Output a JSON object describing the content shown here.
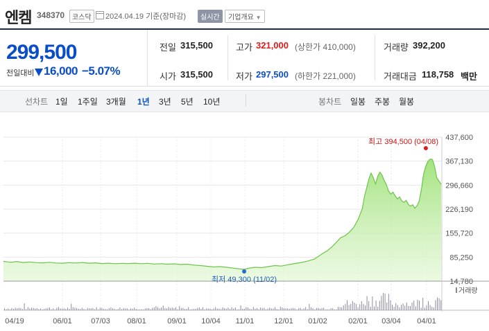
{
  "header": {
    "name": "엔켐",
    "code": "348370",
    "market": "코스닥",
    "date": "2024.04.19",
    "basis": "기준(장마감)",
    "realtime": "실시간",
    "company_info": "기업개요"
  },
  "price": {
    "current": "299,500",
    "change_label": "전일대비",
    "change": "16,000",
    "change_pct": "−5.07%"
  },
  "stats": {
    "prev_label": "전일",
    "prev": "315,500",
    "high_label": "고가",
    "high": "321,000",
    "upper_limit": "(상한가 410,000)",
    "volume_label": "거래량",
    "volume": "392,200",
    "open_label": "시가",
    "open": "315,500",
    "low_label": "저가",
    "low": "297,500",
    "lower_limit": "(하한가 221,000)",
    "amount_label": "거래대금",
    "amount": "118,758",
    "amount_unit": "백만"
  },
  "tabs": {
    "line_label": "선차트",
    "periods": [
      "1일",
      "1주일",
      "3개월",
      "1년",
      "3년",
      "5년",
      "10년"
    ],
    "active_period": "1년",
    "candle_label": "봉차트",
    "candles": [
      "일봉",
      "주봉",
      "월봉"
    ]
  },
  "chart_data": {
    "type": "area",
    "y_ticks": [
      "437,600",
      "367,130",
      "296,660",
      "226,190",
      "155,720",
      "85,250",
      "14,780"
    ],
    "ylim": [
      14780,
      437600
    ],
    "x_ticks": [
      "04/19",
      "06/01",
      "07/03",
      "08/01",
      "09/01",
      "10/04",
      "11/01",
      "12/01",
      "01/02",
      "02/01",
      "03/04",
      "04/01"
    ],
    "max_annotation": "최고 394,500 (04/08)",
    "min_annotation": "최저 49,300 (11/02)",
    "volume_label": "거래량",
    "prices": [
      [
        0,
        73000
      ],
      [
        0.01,
        71000
      ],
      [
        0.02,
        70500
      ],
      [
        0.03,
        72500
      ],
      [
        0.045,
        69500
      ],
      [
        0.06,
        71000
      ],
      [
        0.075,
        69000
      ],
      [
        0.09,
        68500
      ],
      [
        0.105,
        70000
      ],
      [
        0.12,
        68000
      ],
      [
        0.135,
        67500
      ],
      [
        0.15,
        69000
      ],
      [
        0.165,
        68000
      ],
      [
        0.18,
        69500
      ],
      [
        0.195,
        67500
      ],
      [
        0.21,
        68500
      ],
      [
        0.225,
        66500
      ],
      [
        0.24,
        67500
      ],
      [
        0.255,
        66000
      ],
      [
        0.27,
        67000
      ],
      [
        0.285,
        66500
      ],
      [
        0.3,
        67500
      ],
      [
        0.315,
        66000
      ],
      [
        0.33,
        67000
      ],
      [
        0.345,
        65000
      ],
      [
        0.36,
        66000
      ],
      [
        0.375,
        64500
      ],
      [
        0.39,
        65500
      ],
      [
        0.405,
        63500
      ],
      [
        0.42,
        64500
      ],
      [
        0.435,
        62000
      ],
      [
        0.45,
        60500
      ],
      [
        0.465,
        58500
      ],
      [
        0.48,
        56500
      ],
      [
        0.495,
        57500
      ],
      [
        0.51,
        55500
      ],
      [
        0.525,
        53000
      ],
      [
        0.54,
        50500
      ],
      [
        0.55,
        49300
      ],
      [
        0.56,
        52500
      ],
      [
        0.575,
        55500
      ],
      [
        0.59,
        54500
      ],
      [
        0.605,
        57500
      ],
      [
        0.62,
        60500
      ],
      [
        0.635,
        59000
      ],
      [
        0.65,
        63000
      ],
      [
        0.665,
        66500
      ],
      [
        0.68,
        69500
      ],
      [
        0.695,
        73500
      ],
      [
        0.71,
        79500
      ],
      [
        0.72,
        88000
      ],
      [
        0.73,
        96500
      ],
      [
        0.74,
        104000
      ],
      [
        0.75,
        115000
      ],
      [
        0.76,
        128000
      ],
      [
        0.77,
        142000
      ],
      [
        0.78,
        148000
      ],
      [
        0.79,
        158000
      ],
      [
        0.8,
        172000
      ],
      [
        0.81,
        195000
      ],
      [
        0.82,
        228000
      ],
      [
        0.825,
        265000
      ],
      [
        0.83,
        289000
      ],
      [
        0.835,
        315000
      ],
      [
        0.84,
        332000
      ],
      [
        0.845,
        318000
      ],
      [
        0.85,
        300000
      ],
      [
        0.855,
        322000
      ],
      [
        0.86,
        335000
      ],
      [
        0.865,
        326000
      ],
      [
        0.87,
        310000
      ],
      [
        0.875,
        298000
      ],
      [
        0.88,
        279000
      ],
      [
        0.885,
        270000
      ],
      [
        0.89,
        276000
      ],
      [
        0.895,
        265000
      ],
      [
        0.9,
        256000
      ],
      [
        0.905,
        262000
      ],
      [
        0.91,
        250000
      ],
      [
        0.915,
        246000
      ],
      [
        0.92,
        252000
      ],
      [
        0.925,
        240000
      ],
      [
        0.93,
        235000
      ],
      [
        0.935,
        239000
      ],
      [
        0.94,
        229000
      ],
      [
        0.945,
        236000
      ],
      [
        0.95,
        250000
      ],
      [
        0.955,
        285000
      ],
      [
        0.96,
        330000
      ],
      [
        0.965,
        352000
      ],
      [
        0.97,
        367000
      ],
      [
        0.975,
        373000
      ],
      [
        0.98,
        372000
      ],
      [
        0.985,
        352000
      ],
      [
        0.99,
        318000
      ],
      [
        0.995,
        309000
      ],
      [
        1.0,
        299500
      ]
    ]
  }
}
